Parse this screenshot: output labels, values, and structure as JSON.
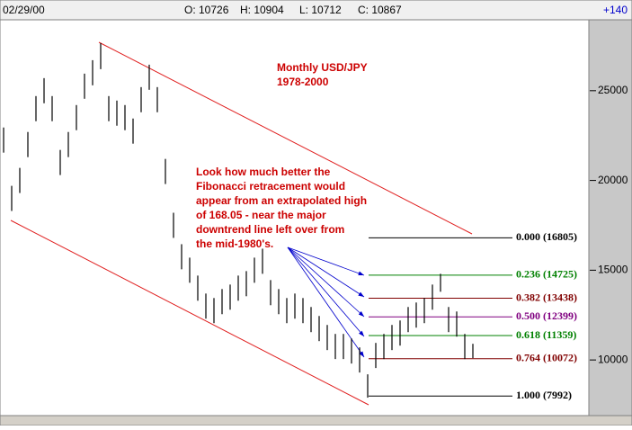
{
  "header": {
    "date": "02/29/00",
    "open": "O: 10726",
    "high": "H: 10904",
    "low": "L: 10712",
    "close": "C: 10867",
    "change": "+140"
  },
  "chart_data": {
    "type": "ohlc",
    "title": "Monthly USD/JPY",
    "subtitle": "1978-2000",
    "annotation": [
      "Look how much better the",
      "Fibonacci retracement would",
      "appear from an extrapolated high",
      "of 168.05 - near the major",
      "downtrend line left over from",
      "the mid-1980's."
    ],
    "highs": [
      22950,
      19700,
      20700,
      22700,
      24700,
      25700,
      24700,
      21700,
      22700,
      24200,
      25950,
      26700,
      27650,
      24700,
      24450,
      24200,
      23450,
      25200,
      26450,
      25200,
      21200,
      18200,
      16450,
      15700,
      14700,
      13700,
      13450,
      13950,
      14200,
      14700,
      14950,
      15700,
      16200,
      14450,
      13950,
      13450,
      13700,
      13450,
      12950,
      12450,
      11950,
      11450,
      11450,
      11200,
      10700,
      9200,
      10950,
      11450,
      11950,
      12200,
      12950,
      13200,
      13450,
      14200,
      14800,
      12950,
      12700,
      11450,
      10900
    ],
    "lows": [
      21550,
      18300,
      19300,
      21300,
      23300,
      24300,
      23300,
      20300,
      21300,
      22800,
      24550,
      25300,
      26200,
      23300,
      23050,
      22800,
      22050,
      23800,
      25050,
      23800,
      19800,
      16800,
      15050,
      14300,
      13300,
      12300,
      12050,
      12550,
      12800,
      13300,
      13550,
      14300,
      14800,
      13050,
      12550,
      12050,
      12300,
      12050,
      11550,
      11050,
      10550,
      10050,
      10050,
      9800,
      9300,
      7900,
      9550,
      10050,
      10550,
      10800,
      11550,
      11800,
      12050,
      12800,
      13800,
      11550,
      11300,
      10050,
      10100
    ],
    "color": "#000000",
    "ylim": [
      6900,
      28950
    ],
    "yticks": [
      10000,
      15000,
      20000,
      25000
    ],
    "fib_levels": {
      "values": [
        16805,
        14725,
        13438,
        12399,
        11359,
        10072,
        7992
      ],
      "value_labels": [
        "0.000 (16805)",
        "0.236 (14725)",
        "0.382 (13438)",
        "0.500 (12399)",
        "0.618 (11359)",
        "0.764 (10072)",
        "1.000 (7992)"
      ],
      "colors": [
        "#000000",
        "#008000",
        "#800000",
        "#800080",
        "#008000",
        "#800000",
        "#000000"
      ]
    }
  }
}
